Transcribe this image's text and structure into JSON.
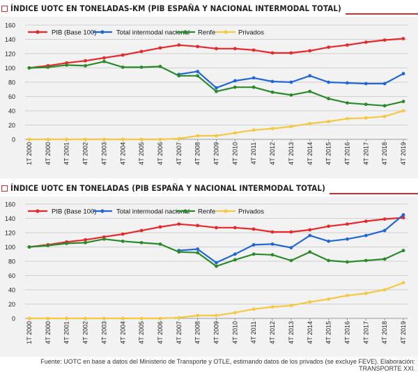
{
  "source": "Fuente: UOTC en base a datos del Ministerio de Transporte y OTLE, estimando datos de los privados (se excluye FEVE). Elaboración: TRANSPORTE XXI.",
  "colors": {
    "pib": "#e8262b",
    "total": "#2166d8",
    "renfe": "#2a8a2a",
    "privados": "#f5c842",
    "accent": "#d42b2b",
    "grid": "#cfcfcf",
    "background": "#f2f2f2"
  },
  "chart_data": [
    {
      "type": "line",
      "title": "ÍNDICE UOTC EN TONELADAS-KM (PIB ESPAÑA Y NACIONAL INTERMODAL TOTAL)",
      "categories": [
        "1T 2000",
        "4T 2000",
        "4T 2001",
        "4T 2002",
        "4T 2003",
        "4T 2004",
        "4T 2005",
        "4T 2006",
        "4T 2007",
        "4T 2008",
        "4T 2009",
        "4T 2010",
        "4T 2011",
        "4T 2012",
        "4T 2013",
        "4T 2014",
        "4T 2015",
        "4T 2016",
        "4T 2017",
        "4T 2018",
        "4T 2019"
      ],
      "ylim": [
        0,
        160
      ],
      "yticks": [
        0,
        20,
        40,
        60,
        80,
        100,
        120,
        140,
        160
      ],
      "grid": true,
      "legend_position": "top",
      "series": [
        {
          "name": "PIB (Base 100)",
          "color": "#e8262b",
          "values": [
            100,
            103,
            107,
            110,
            114,
            118,
            123,
            128,
            132,
            130,
            127,
            127,
            125,
            121,
            121,
            124,
            129,
            132,
            136,
            139,
            141
          ]
        },
        {
          "name": "Total intermodal nacional",
          "color": "#2166d8",
          "values": [
            null,
            null,
            null,
            null,
            null,
            null,
            null,
            null,
            91,
            95,
            72,
            82,
            86,
            81,
            80,
            89,
            80,
            79,
            78,
            78,
            92
          ]
        },
        {
          "name": "Renfe",
          "color": "#2a8a2a",
          "values": [
            100,
            101,
            104,
            103,
            109,
            101,
            101,
            102,
            89,
            89,
            67,
            73,
            73,
            66,
            62,
            67,
            57,
            51,
            49,
            47,
            53
          ]
        },
        {
          "name": "Privados",
          "color": "#f5c842",
          "values": [
            0,
            0,
            0,
            0,
            0,
            0,
            0,
            0,
            1,
            5,
            5,
            9,
            13,
            15,
            18,
            22,
            25,
            29,
            30,
            32,
            40
          ]
        }
      ]
    },
    {
      "type": "line",
      "title": "ÍNDICE UOTC EN TONELADAS (PIB ESPAÑA Y NACIONAL INTERMODAL TOTAL)",
      "categories": [
        "1T 2000",
        "4T 2000",
        "4T 2001",
        "4T 2002",
        "4T 2003",
        "4T 2004",
        "4T 2005",
        "4T 2006",
        "4T 2007",
        "4T 2008",
        "4T 2009",
        "4T 2010",
        "4T 2011",
        "4T 2012",
        "4T 2013",
        "4T 2014",
        "4T 2015",
        "4T 2016",
        "4T 2017",
        "4T 2018",
        "4T 2019"
      ],
      "ylim": [
        0,
        160
      ],
      "yticks": [
        0,
        20,
        40,
        60,
        80,
        100,
        120,
        140,
        160
      ],
      "grid": true,
      "legend_position": "top",
      "series": [
        {
          "name": "PIB (Base 100)",
          "color": "#e8262b",
          "values": [
            100,
            103,
            107,
            110,
            114,
            118,
            123,
            128,
            132,
            130,
            127,
            127,
            125,
            121,
            121,
            124,
            129,
            132,
            136,
            139,
            141
          ]
        },
        {
          "name": "Total intermodal nacional",
          "color": "#2166d8",
          "values": [
            null,
            null,
            null,
            null,
            null,
            null,
            null,
            null,
            95,
            97,
            78,
            90,
            103,
            104,
            99,
            116,
            108,
            111,
            116,
            123,
            145
          ]
        },
        {
          "name": "Renfe",
          "color": "#2a8a2a",
          "values": [
            100,
            102,
            105,
            106,
            111,
            108,
            106,
            104,
            93,
            92,
            73,
            82,
            90,
            89,
            81,
            93,
            81,
            79,
            81,
            83,
            95
          ]
        },
        {
          "name": "Privados",
          "color": "#f5c842",
          "values": [
            0,
            0,
            0,
            0,
            0,
            0,
            0,
            0,
            1,
            4,
            4,
            8,
            13,
            16,
            18,
            23,
            27,
            32,
            35,
            40,
            50
          ]
        }
      ]
    }
  ]
}
